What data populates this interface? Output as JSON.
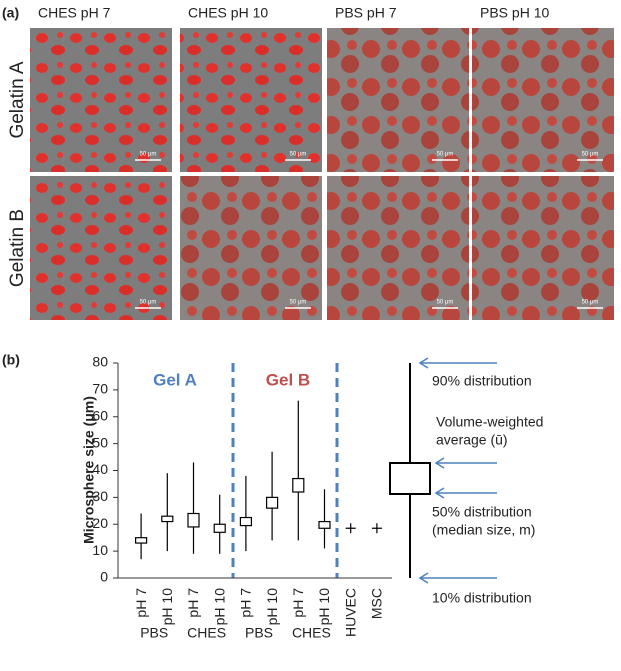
{
  "panel_a": {
    "label": "(a)",
    "columns": [
      "CHES pH 7",
      "CHES pH 10",
      "PBS pH 7",
      "PBS pH 10"
    ],
    "rows": [
      "Gelatin A",
      "Gelatin B"
    ],
    "scale_bar": "50 μm"
  },
  "panel_b": {
    "label": "(b)"
  },
  "chart_data": {
    "type": "box",
    "y_label": "Microsphere size (μm)",
    "categories": [
      "pH 7",
      "pH 10",
      "pH 7",
      "pH 10",
      "pH 7",
      "pH 10",
      "pH 7",
      "pH 10",
      "HUVEC",
      "MSC"
    ],
    "group_labels": [
      "PBS",
      "CHES",
      "PBS",
      "CHES"
    ],
    "annotations": [
      {
        "text": "Gel  A",
        "color": "#4f81bd"
      },
      {
        "text": "Gel B",
        "color": "#c0504d"
      }
    ],
    "boxes": [
      {
        "p10": 7,
        "p50": 13,
        "mean": 15,
        "p90": 24
      },
      {
        "p10": 10,
        "p50": 21,
        "mean": 23,
        "p90": 39
      },
      {
        "p10": 9,
        "p50": 19,
        "mean": 24,
        "p90": 43
      },
      {
        "p10": 9,
        "p50": 17,
        "mean": 20,
        "p90": 31
      },
      {
        "p10": 10,
        "p50": 19.5,
        "mean": 22.5,
        "p90": 38
      },
      {
        "p10": 14,
        "p50": 26,
        "mean": 30,
        "p90": 47
      },
      {
        "p10": 14,
        "p50": 32,
        "mean": 37,
        "p90": 66
      },
      {
        "p10": 11,
        "p50": 18.5,
        "mean": 21,
        "p90": 33
      }
    ],
    "crosses": [
      18.5,
      18.5
    ],
    "ylim": [
      0,
      80
    ],
    "yticks": [
      0,
      10,
      20,
      30,
      40,
      50,
      60,
      70,
      80
    ],
    "key": {
      "p90": "90% distribution",
      "mean": [
        "Volume-weighted",
        "average (ū)"
      ],
      "p50": [
        "50% distribution",
        "(median size, m)"
      ],
      "p10": "10% distribution"
    }
  }
}
